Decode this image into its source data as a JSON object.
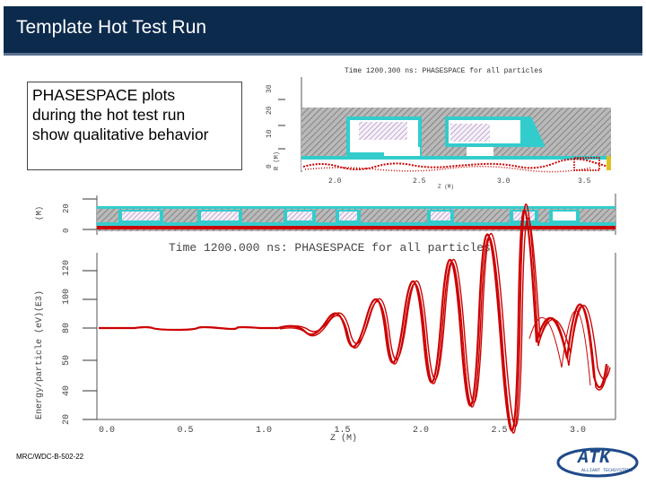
{
  "slide": {
    "title": "Template Hot Test Run",
    "body_lines": [
      "PHASESPACE plots",
      "during the hot test run",
      "show qualitative behavior"
    ],
    "footer": "MRC/WDC-B-502-22"
  },
  "small_plot": {
    "title": "Time 1200.300 ns:  PHASESPACE for all particles",
    "y_ticks": [
      "0",
      "10",
      "20",
      "30"
    ],
    "y_label": "R (M)",
    "x_ticks": [
      "2.0",
      "2.5",
      "3.0",
      "3.5"
    ],
    "x_label": "Z (M)"
  },
  "geometry_plot": {
    "y_ticks": [
      "0",
      "20"
    ],
    "y_label": "(M)"
  },
  "main_plot": {
    "title": "Time 1200.000 ns:  PHASESPACE for all particles",
    "y_label": "Energy/particle (eV)(E3)",
    "y_ticks": [
      "20",
      "40",
      "50",
      "80",
      "100",
      "120"
    ],
    "x_ticks": [
      "0.0",
      "0.5",
      "1.0",
      "1.5",
      "2.0",
      "2.5",
      "3.0"
    ],
    "x_label": "Z (M)"
  },
  "logo": {
    "text": "ATK",
    "subtext": "ALLIANT TECHSYSTEMS"
  },
  "colors": {
    "title_bg": "#0c2a4c",
    "plot_red": "#cc0000",
    "geometry_cyan": "#33cccc",
    "hatch_gray": "#8a8a8a"
  }
}
